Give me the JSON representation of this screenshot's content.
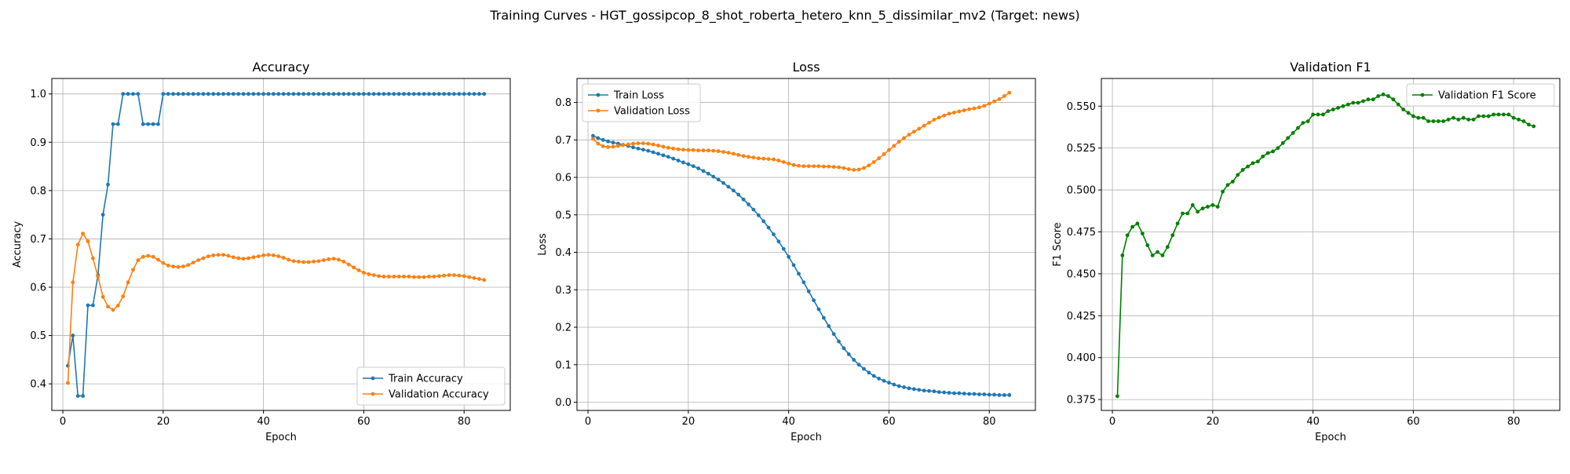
{
  "figure": {
    "suptitle": "Training Curves - HGT_gossipcop_8_shot_roberta_hetero_knn_5_dissimilar_mv2 (Target: news)"
  },
  "colors": {
    "blue": "#1f77b4",
    "orange": "#ff7f0e",
    "green": "#008000",
    "grid": "#b0b0b0"
  },
  "chart_data": [
    {
      "type": "line",
      "title": "Accuracy",
      "xlabel": "Epoch",
      "ylabel": "Accuracy",
      "xlim": [
        -2.2,
        89.2
      ],
      "ylim": [
        0.345,
        1.032
      ],
      "xticks": [
        0,
        20,
        40,
        60,
        80
      ],
      "yticks": [
        0.4,
        0.5,
        0.6,
        0.7,
        0.8,
        0.9,
        1.0
      ],
      "ytick_decimals": 1,
      "grid": true,
      "legend": "lower right",
      "x_start": 1,
      "series": [
        {
          "name": "Train Accuracy",
          "color": "#1f77b4",
          "values": [
            0.4375,
            0.5,
            0.375,
            0.375,
            0.5625,
            0.5625,
            0.625,
            0.75,
            0.8125,
            0.9375,
            0.9375,
            1.0,
            1.0,
            1.0,
            1.0,
            0.9375,
            0.9375,
            0.9375,
            0.9375,
            1.0,
            1.0,
            1.0,
            1.0,
            1.0,
            1.0,
            1.0,
            1.0,
            1.0,
            1.0,
            1.0,
            1.0,
            1.0,
            1.0,
            1.0,
            1.0,
            1.0,
            1.0,
            1.0,
            1.0,
            1.0,
            1.0,
            1.0,
            1.0,
            1.0,
            1.0,
            1.0,
            1.0,
            1.0,
            1.0,
            1.0,
            1.0,
            1.0,
            1.0,
            1.0,
            1.0,
            1.0,
            1.0,
            1.0,
            1.0,
            1.0,
            1.0,
            1.0,
            1.0,
            1.0,
            1.0,
            1.0,
            1.0,
            1.0,
            1.0,
            1.0,
            1.0,
            1.0,
            1.0,
            1.0,
            1.0,
            1.0,
            1.0,
            1.0,
            1.0,
            1.0,
            1.0,
            1.0,
            1.0,
            1.0
          ]
        },
        {
          "name": "Validation Accuracy",
          "color": "#ff7f0e",
          "values": [
            0.402,
            0.61,
            0.688,
            0.711,
            0.695,
            0.66,
            0.622,
            0.58,
            0.56,
            0.553,
            0.562,
            0.581,
            0.61,
            0.636,
            0.656,
            0.663,
            0.665,
            0.663,
            0.657,
            0.65,
            0.645,
            0.643,
            0.642,
            0.643,
            0.646,
            0.651,
            0.656,
            0.66,
            0.664,
            0.666,
            0.667,
            0.667,
            0.665,
            0.662,
            0.66,
            0.659,
            0.66,
            0.662,
            0.664,
            0.666,
            0.667,
            0.666,
            0.664,
            0.661,
            0.657,
            0.654,
            0.653,
            0.652,
            0.652,
            0.653,
            0.654,
            0.656,
            0.658,
            0.659,
            0.657,
            0.653,
            0.647,
            0.641,
            0.635,
            0.63,
            0.627,
            0.625,
            0.623,
            0.622,
            0.622,
            0.622,
            0.622,
            0.622,
            0.622,
            0.621,
            0.621,
            0.621,
            0.622,
            0.622,
            0.623,
            0.624,
            0.625,
            0.625,
            0.624,
            0.623,
            0.621,
            0.619,
            0.617,
            0.615
          ]
        }
      ]
    },
    {
      "type": "line",
      "title": "Loss",
      "xlabel": "Epoch",
      "ylabel": "Loss",
      "xlim": [
        -2.2,
        89.2
      ],
      "ylim": [
        -0.022,
        0.864
      ],
      "xticks": [
        0,
        20,
        40,
        60,
        80
      ],
      "yticks": [
        0.0,
        0.1,
        0.2,
        0.3,
        0.4,
        0.5,
        0.6,
        0.7,
        0.8
      ],
      "ytick_decimals": 1,
      "grid": true,
      "legend": "upper left",
      "x_start": 1,
      "series": [
        {
          "name": "Train Loss",
          "color": "#1f77b4",
          "values": [
            0.711,
            0.705,
            0.7,
            0.696,
            0.693,
            0.69,
            0.687,
            0.684,
            0.68,
            0.677,
            0.674,
            0.671,
            0.667,
            0.663,
            0.659,
            0.655,
            0.65,
            0.645,
            0.64,
            0.635,
            0.63,
            0.624,
            0.617,
            0.61,
            0.602,
            0.594,
            0.585,
            0.575,
            0.565,
            0.554,
            0.541,
            0.528,
            0.514,
            0.499,
            0.483,
            0.466,
            0.448,
            0.429,
            0.409,
            0.388,
            0.366,
            0.343,
            0.32,
            0.296,
            0.272,
            0.248,
            0.225,
            0.203,
            0.182,
            0.162,
            0.144,
            0.128,
            0.113,
            0.1,
            0.089,
            0.079,
            0.07,
            0.063,
            0.057,
            0.052,
            0.047,
            0.043,
            0.04,
            0.037,
            0.035,
            0.033,
            0.031,
            0.03,
            0.029,
            0.027,
            0.026,
            0.025,
            0.024,
            0.024,
            0.023,
            0.022,
            0.022,
            0.021,
            0.021,
            0.02,
            0.02,
            0.019,
            0.019,
            0.019
          ]
        },
        {
          "name": "Validation Loss",
          "color": "#ff7f0e",
          "values": [
            0.703,
            0.69,
            0.683,
            0.681,
            0.682,
            0.684,
            0.686,
            0.688,
            0.69,
            0.691,
            0.691,
            0.69,
            0.688,
            0.685,
            0.682,
            0.679,
            0.677,
            0.675,
            0.674,
            0.673,
            0.673,
            0.672,
            0.672,
            0.672,
            0.671,
            0.67,
            0.668,
            0.666,
            0.663,
            0.66,
            0.657,
            0.655,
            0.653,
            0.651,
            0.65,
            0.649,
            0.648,
            0.645,
            0.641,
            0.637,
            0.633,
            0.631,
            0.63,
            0.63,
            0.63,
            0.63,
            0.629,
            0.629,
            0.628,
            0.627,
            0.625,
            0.622,
            0.62,
            0.621,
            0.625,
            0.632,
            0.641,
            0.651,
            0.662,
            0.673,
            0.684,
            0.695,
            0.705,
            0.714,
            0.722,
            0.73,
            0.738,
            0.746,
            0.754,
            0.76,
            0.765,
            0.77,
            0.773,
            0.776,
            0.779,
            0.782,
            0.784,
            0.787,
            0.791,
            0.797,
            0.803,
            0.809,
            0.817,
            0.826
          ]
        }
      ]
    },
    {
      "type": "line",
      "title": "Validation F1",
      "xlabel": "Epoch",
      "ylabel": "F1 Score",
      "xlim": [
        -2.2,
        89.2
      ],
      "ylim": [
        0.3685,
        0.5665
      ],
      "xticks": [
        0,
        20,
        40,
        60,
        80
      ],
      "yticks": [
        0.375,
        0.4,
        0.425,
        0.45,
        0.475,
        0.5,
        0.525,
        0.55
      ],
      "ytick_decimals": 3,
      "grid": true,
      "legend": "upper right",
      "x_start": 1,
      "series": [
        {
          "name": "Validation F1 Score",
          "color": "#008000",
          "values": [
            0.377,
            0.461,
            0.473,
            0.478,
            0.48,
            0.474,
            0.467,
            0.461,
            0.463,
            0.461,
            0.466,
            0.473,
            0.48,
            0.486,
            0.486,
            0.491,
            0.487,
            0.489,
            0.49,
            0.491,
            0.49,
            0.499,
            0.503,
            0.505,
            0.509,
            0.512,
            0.514,
            0.516,
            0.517,
            0.52,
            0.522,
            0.523,
            0.525,
            0.528,
            0.531,
            0.534,
            0.537,
            0.54,
            0.541,
            0.545,
            0.545,
            0.545,
            0.547,
            0.548,
            0.549,
            0.55,
            0.551,
            0.552,
            0.552,
            0.553,
            0.554,
            0.554,
            0.556,
            0.557,
            0.556,
            0.554,
            0.551,
            0.548,
            0.546,
            0.544,
            0.543,
            0.543,
            0.541,
            0.541,
            0.541,
            0.541,
            0.542,
            0.543,
            0.542,
            0.543,
            0.542,
            0.542,
            0.544,
            0.544,
            0.544,
            0.545,
            0.545,
            0.545,
            0.545,
            0.543,
            0.542,
            0.541,
            0.539,
            0.538
          ]
        }
      ]
    }
  ]
}
